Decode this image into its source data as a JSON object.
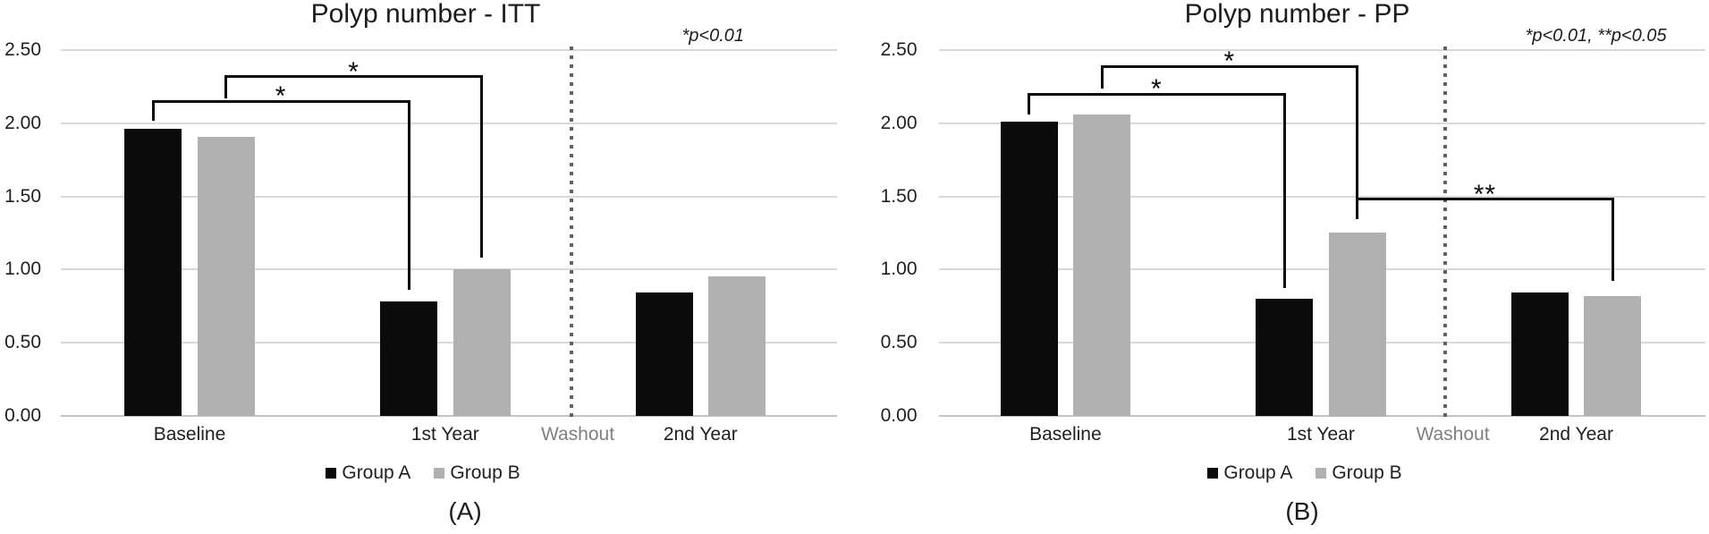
{
  "figure_colors": {
    "group_a": "#0b0b0b",
    "group_b": "#b0b0b0",
    "gridline": "#d9d9d9",
    "zero_line": "#c4c4c4",
    "washout_line": "#616161",
    "washout_text": "#808080",
    "text": "#1f1f1f"
  },
  "chart_data": [
    {
      "type": "bar",
      "title": "Polyp number - ITT",
      "caption": "(A)",
      "significance_note": "*p<0.01",
      "categories": [
        "Baseline",
        "1st Year",
        "2nd Year"
      ],
      "washout_label": "Washout",
      "series": [
        {
          "name": "Group A",
          "color": "#0b0b0b",
          "values": [
            1.96,
            0.78,
            0.84
          ]
        },
        {
          "name": "Group B",
          "color": "#b0b0b0",
          "values": [
            1.91,
            1.0,
            0.95
          ]
        }
      ],
      "ylabel": "",
      "xlabel": "",
      "ylim": [
        0,
        2.5
      ],
      "ytick_step": 0.5,
      "ytick_labels": [
        "0.00",
        "0.50",
        "1.00",
        "1.50",
        "2.00",
        "2.50"
      ],
      "grid": true,
      "legend_position": "bottom",
      "significance_brackets": [
        {
          "label": "*",
          "from": {
            "category": 0,
            "series": 0
          },
          "to": {
            "category": 1,
            "series": 0
          },
          "y": 2.15,
          "from_drop_to": 2.02,
          "to_drop_to": 0.86
        },
        {
          "label": "*",
          "from": {
            "category": 0,
            "series": 1
          },
          "to": {
            "category": 1,
            "series": 1
          },
          "y": 2.32,
          "from_drop_to": 2.17,
          "to_drop_to": 1.08
        }
      ]
    },
    {
      "type": "bar",
      "title": "Polyp number - PP",
      "caption": "(B)",
      "significance_note": "*p<0.01, **p<0.05",
      "categories": [
        "Baseline",
        "1st Year",
        "2nd Year"
      ],
      "washout_label": "Washout",
      "series": [
        {
          "name": "Group A",
          "color": "#0b0b0b",
          "values": [
            2.01,
            0.8,
            0.84
          ]
        },
        {
          "name": "Group B",
          "color": "#b0b0b0",
          "values": [
            2.06,
            1.25,
            0.82
          ]
        }
      ],
      "ylabel": "",
      "xlabel": "",
      "ylim": [
        0,
        2.5
      ],
      "ytick_step": 0.5,
      "ytick_labels": [
        "0.00",
        "0.50",
        "1.00",
        "1.50",
        "2.00",
        "2.50"
      ],
      "grid": true,
      "legend_position": "bottom",
      "significance_brackets": [
        {
          "label": "*",
          "from": {
            "category": 0,
            "series": 0
          },
          "to": {
            "category": 1,
            "series": 0
          },
          "y": 2.2,
          "from_drop_to": 2.06,
          "to_drop_to": 0.875
        },
        {
          "label": "*",
          "from": {
            "category": 0,
            "series": 1
          },
          "to": {
            "category": 1,
            "series": 1
          },
          "y": 2.39,
          "from_drop_to": 2.24,
          "to_drop_to": 1.345
        },
        {
          "label": "**",
          "from": {
            "category": 1,
            "series": 1
          },
          "to": {
            "category": 2,
            "series": 1
          },
          "y": 1.48,
          "from_drop_to": 1.345,
          "to_drop_to": 0.92
        }
      ]
    }
  ]
}
